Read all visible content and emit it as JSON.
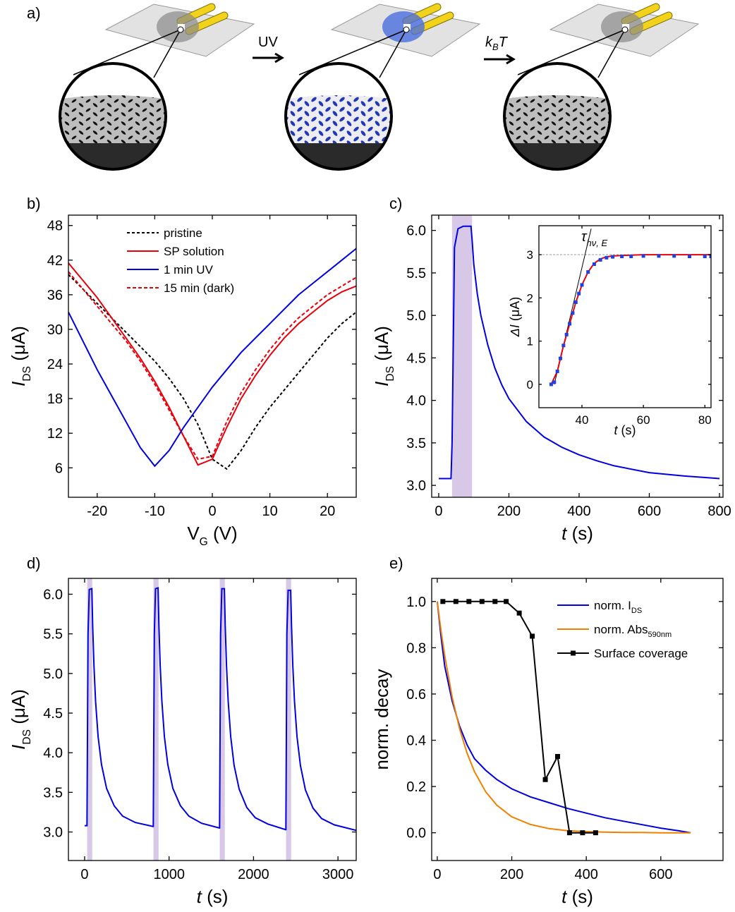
{
  "diagram": {
    "label": "a)",
    "uv": "UV",
    "kbt": {
      "k": "k",
      "sub": "B",
      "t": "T"
    }
  },
  "chart_data": [
    {
      "panel_label": "b)",
      "type": "line",
      "xlim": [
        -25,
        25
      ],
      "ylim": [
        0.9,
        49.8
      ],
      "xticks": [
        -20,
        -10,
        0,
        10,
        20
      ],
      "yticks": [
        6,
        12,
        18,
        24,
        30,
        36,
        42,
        48
      ],
      "xlabel": [
        {
          "text": "V"
        },
        {
          "text": "G",
          "style": "sub"
        },
        {
          "text": " (V)"
        }
      ],
      "ylabel": [
        {
          "text": "I",
          "style": "italic"
        },
        {
          "text": "DS",
          "style": "sub"
        },
        {
          "text": " (μA)"
        }
      ],
      "legend": "upper left",
      "series": [
        {
          "name": "pristine",
          "color": "#000000",
          "dash": "4,3",
          "x": [
            -25,
            -22.5,
            -20,
            -17.5,
            -15,
            -12.5,
            -10,
            -7.5,
            -5,
            -2.5,
            0,
            2.5,
            5,
            7.5,
            10,
            12.5,
            15,
            17.5,
            20,
            22.5,
            25
          ],
          "values": [
            39.5,
            37,
            34.5,
            32,
            29.5,
            27,
            24.5,
            21.5,
            18,
            13.5,
            7.5,
            5.8,
            9,
            13,
            16.5,
            19.5,
            22.5,
            25.5,
            28.5,
            31,
            33
          ]
        },
        {
          "name": "SP solution",
          "color": "#e8000b",
          "x": [
            -25,
            -22.5,
            -20,
            -17.5,
            -15,
            -12.5,
            -10,
            -7.5,
            -5,
            -2.5,
            0,
            2.5,
            5,
            7.5,
            10,
            12.5,
            15,
            17.5,
            20,
            22.5,
            25
          ],
          "values": [
            41.5,
            38.5,
            35.5,
            32,
            28.5,
            25,
            21,
            16.5,
            11.5,
            6.5,
            7.5,
            13,
            18,
            22,
            25.5,
            28.5,
            31,
            33,
            35,
            36.5,
            37.5
          ]
        },
        {
          "name": "1 min UV",
          "color": "#0000e0",
          "x": [
            -25,
            -22.5,
            -20,
            -17.5,
            -15,
            -12.5,
            -10,
            -7.5,
            -5,
            -2.5,
            0,
            2.5,
            5,
            7.5,
            10,
            12.5,
            15,
            17.5,
            20,
            22.5,
            25
          ],
          "values": [
            33,
            28,
            23,
            18.5,
            14,
            9.5,
            6.3,
            9,
            13,
            16.5,
            20,
            23,
            26,
            28.5,
            31,
            33.5,
            36,
            38,
            40,
            42,
            44
          ]
        },
        {
          "name": "15 min (dark)",
          "color": "#e8000b",
          "dash": "5,3",
          "x": [
            -25,
            -22.5,
            -20,
            -17.5,
            -15,
            -12.5,
            -10,
            -7.5,
            -5,
            -2.5,
            0,
            2.5,
            5,
            7.5,
            10,
            12.5,
            15,
            17.5,
            20,
            22.5,
            25
          ],
          "values": [
            40,
            37,
            34,
            31,
            28,
            24.5,
            20.5,
            16,
            11.5,
            7.5,
            8,
            14,
            19,
            23,
            26.5,
            29.5,
            32,
            34,
            36,
            37.5,
            39
          ]
        }
      ]
    },
    {
      "panel_label": "c)",
      "type": "line",
      "xlim": [
        -20,
        810
      ],
      "ylim": [
        2.86,
        6.18
      ],
      "xticks": [
        0,
        200,
        400,
        600,
        800
      ],
      "yticks": [
        {
          "value": 3,
          "label": "3.0"
        },
        3.5,
        {
          "value": 4,
          "label": "4.0"
        },
        4.5,
        {
          "value": 5,
          "label": "5.0"
        },
        5.5,
        {
          "value": 6,
          "label": "6.0"
        }
      ],
      "xlabel": [
        {
          "text": "t",
          "style": "italic"
        },
        {
          "text": " (s)"
        }
      ],
      "ylabel": [
        {
          "text": "I",
          "style": "italic"
        },
        {
          "text": "DS",
          "style": "sub"
        },
        {
          "text": " (μA)"
        }
      ],
      "spans": [
        [
          38,
          95
        ]
      ],
      "span_color": "#d6c8e6",
      "series": [
        {
          "color": "#0000e0",
          "x": [
            0,
            35,
            38,
            45,
            55,
            70,
            92,
            95,
            100,
            110,
            120,
            140,
            160,
            180,
            200,
            250,
            300,
            350,
            400,
            450,
            500,
            600,
            700,
            800
          ],
          "values": [
            3.08,
            3.08,
            3.5,
            5.8,
            6.02,
            6.05,
            6.05,
            5.9,
            5.6,
            5.25,
            5.0,
            4.65,
            4.38,
            4.18,
            4.02,
            3.75,
            3.57,
            3.45,
            3.36,
            3.29,
            3.23,
            3.15,
            3.11,
            3.08
          ]
        }
      ]
    },
    {
      "type": "line",
      "xlim": [
        26,
        82
      ],
      "ylim": [
        -0.54,
        3.67
      ],
      "xticks": [
        40,
        60,
        80
      ],
      "yticks": [
        0,
        1,
        2,
        3
      ],
      "xlabel": [
        {
          "text": "t",
          "style": "italic"
        },
        {
          "text": " (s)"
        }
      ],
      "ylabel": [
        {
          "text": "ΔI",
          "style": "italic"
        },
        {
          "text": " (μA)"
        }
      ],
      "hline": 3,
      "tangent": {
        "x": [
          31,
          43
        ],
        "y": [
          0,
          3.6
        ]
      },
      "annotation": {
        "text": "τ",
        "sub": "hν, E"
      },
      "series": [
        {
          "color": "#e8000b",
          "x": [
            30,
            32,
            34,
            36,
            38,
            40,
            42,
            44,
            46,
            48,
            50,
            53,
            56,
            60,
            65,
            70,
            75,
            82
          ],
          "values": [
            0,
            0.3,
            0.9,
            1.4,
            1.9,
            2.3,
            2.6,
            2.8,
            2.9,
            2.95,
            2.97,
            2.98,
            2.99,
            3.0,
            3.0,
            3.0,
            3.0,
            3.0
          ]
        },
        {
          "color": "#2040e0",
          "marker": "square",
          "line": false,
          "x": [
            30,
            31,
            32,
            33,
            34,
            35,
            36,
            37,
            38,
            39,
            40,
            42,
            44,
            46,
            48,
            50,
            53,
            56,
            60,
            65,
            70,
            75,
            80,
            82
          ],
          "values": [
            0,
            0.05,
            0.3,
            0.6,
            0.9,
            1.15,
            1.4,
            1.65,
            1.9,
            2.1,
            2.3,
            2.6,
            2.78,
            2.88,
            2.93,
            2.95,
            2.96,
            2.96,
            2.97,
            2.97,
            2.97,
            2.96,
            2.96,
            2.96
          ]
        }
      ]
    },
    {
      "panel_label": "d)",
      "type": "line",
      "xlim": [
        -192,
        3216
      ],
      "ylim": [
        2.64,
        6.2
      ],
      "xticks": [
        0,
        1000,
        2000,
        3000
      ],
      "yticks": [
        {
          "value": 3,
          "label": "3.0"
        },
        3.5,
        {
          "value": 4,
          "label": "4.0"
        },
        4.5,
        {
          "value": 5,
          "label": "5.0"
        },
        5.5,
        {
          "value": 6,
          "label": "6.0"
        }
      ],
      "xlabel": [
        {
          "text": "t",
          "style": "italic"
        },
        {
          "text": " (s)"
        }
      ],
      "ylabel": [
        {
          "text": "I",
          "style": "italic"
        },
        {
          "text": "DS",
          "style": "sub"
        },
        {
          "text": " (μA)"
        }
      ],
      "spans": [
        [
          30,
          90
        ],
        [
          815,
          875
        ],
        [
          1600,
          1660
        ],
        [
          2385,
          2445
        ]
      ],
      "span_color": "#d6c8e6",
      "series": [
        {
          "color": "#0000e0",
          "x": [
            0,
            28,
            40,
            55,
            85,
            95,
            110,
            130,
            160,
            200,
            260,
            350,
            450,
            600,
            810,
            813,
            825,
            840,
            870,
            880,
            895,
            915,
            945,
            985,
            1045,
            1135,
            1235,
            1385,
            1595,
            1598,
            1610,
            1625,
            1655,
            1665,
            1680,
            1700,
            1730,
            1770,
            1830,
            1920,
            2020,
            2170,
            2380,
            2383,
            2395,
            2410,
            2440,
            2450,
            2465,
            2485,
            2515,
            2555,
            2615,
            2705,
            2805,
            2955,
            3216
          ],
          "values": [
            3.08,
            3.08,
            5.5,
            6.06,
            6.07,
            5.6,
            5.1,
            4.65,
            4.2,
            3.85,
            3.55,
            3.33,
            3.2,
            3.12,
            3.07,
            3.07,
            5.5,
            6.07,
            6.08,
            5.6,
            5.1,
            4.65,
            4.2,
            3.85,
            3.55,
            3.33,
            3.2,
            3.11,
            3.05,
            3.05,
            5.5,
            6.07,
            6.07,
            5.6,
            5.1,
            4.65,
            4.2,
            3.84,
            3.54,
            3.31,
            3.18,
            3.1,
            3.03,
            3.03,
            5.5,
            6.05,
            6.05,
            5.6,
            5.1,
            4.65,
            4.2,
            3.84,
            3.53,
            3.3,
            3.17,
            3.09,
            3.02
          ]
        }
      ]
    },
    {
      "panel_label": "e)",
      "type": "line",
      "xlim": [
        -15,
        767
      ],
      "ylim": [
        -0.12,
        1.1
      ],
      "xticks": [
        0,
        200,
        400,
        600
      ],
      "yticks": [
        {
          "value": 0,
          "label": "0.0"
        },
        0.2,
        0.4,
        0.6,
        0.8,
        {
          "value": 1,
          "label": "1.0"
        }
      ],
      "xlabel": [
        {
          "text": "t",
          "style": "italic"
        },
        {
          "text": " (s)"
        }
      ],
      "ylabel": [
        {
          "text": "norm. decay"
        }
      ],
      "legend": "upper right",
      "series": [
        {
          "name": "norm. I",
          "name_sub": "DS",
          "color": "#0000e0",
          "x": [
            0,
            10,
            20,
            40,
            60,
            80,
            100,
            130,
            160,
            200,
            250,
            300,
            350,
            400,
            450,
            500,
            550,
            600,
            650,
            680
          ],
          "values": [
            1.0,
            0.85,
            0.72,
            0.57,
            0.46,
            0.38,
            0.32,
            0.27,
            0.23,
            0.19,
            0.155,
            0.13,
            0.105,
            0.085,
            0.065,
            0.05,
            0.035,
            0.02,
            0.008,
            0
          ]
        },
        {
          "name": "norm. Abs",
          "name_sub": "590nm",
          "color": "#f08000",
          "x": [
            0,
            10,
            20,
            40,
            60,
            80,
            100,
            130,
            160,
            200,
            250,
            300,
            350,
            400,
            450,
            500,
            550,
            600,
            650,
            680
          ],
          "values": [
            1.0,
            0.875,
            0.766,
            0.587,
            0.449,
            0.344,
            0.264,
            0.177,
            0.119,
            0.069,
            0.036,
            0.018,
            0.009,
            0.005,
            0.003,
            0.001,
            0.001,
            0,
            0,
            0
          ]
        },
        {
          "name": "Surface coverage",
          "color": "#000000",
          "marker": "square",
          "x": [
            15,
            50,
            85,
            120,
            155,
            185,
            220,
            255,
            290,
            323,
            355,
            390,
            425
          ],
          "values": [
            1,
            1,
            1,
            1,
            1,
            1,
            0.95,
            0.85,
            0.23,
            0.33,
            0,
            0,
            0
          ]
        }
      ]
    }
  ]
}
